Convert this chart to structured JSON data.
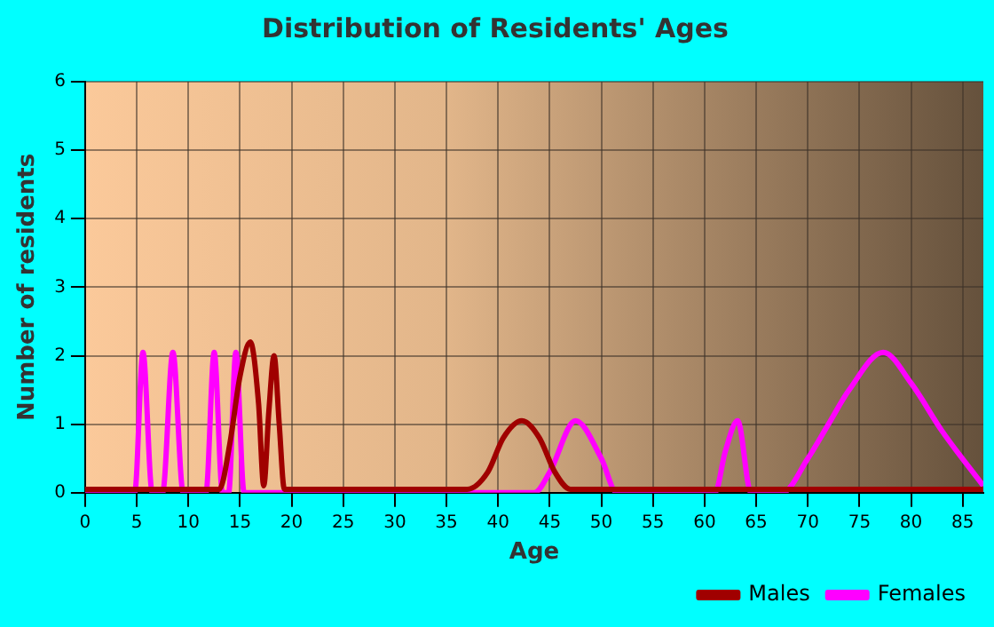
{
  "chart_data": {
    "type": "line",
    "title": "Distribution of Residents' Ages",
    "xlabel": "Age",
    "ylabel": "Number of residents",
    "xlim": [
      0,
      87
    ],
    "xticks": [
      0,
      5,
      10,
      15,
      20,
      25,
      30,
      35,
      40,
      45,
      50,
      55,
      60,
      65,
      70,
      75,
      80,
      85
    ],
    "ylim": [
      0,
      6
    ],
    "yticks": [
      0,
      1,
      2,
      3,
      4,
      5,
      6
    ],
    "grid": true,
    "legend": "bottom right",
    "marker": "none",
    "line_style": "solid",
    "series": [
      {
        "name": "Males",
        "color": "#a00000",
        "x": [
          0,
          13,
          14,
          15,
          16,
          16.8,
          17.3,
          17.8,
          18.3,
          18.8,
          19.3,
          20,
          37,
          39,
          40.5,
          42.3,
          44,
          45.5,
          47,
          60,
          87
        ],
        "values": [
          0.05,
          0.05,
          0.7,
          1.7,
          2.2,
          1.3,
          0.1,
          1.2,
          2,
          1,
          0.05,
          0.05,
          0.05,
          0.3,
          0.8,
          1.05,
          0.8,
          0.3,
          0.05,
          0.05,
          0.05
        ]
      },
      {
        "name": "Females",
        "color": "#ff00ff",
        "x": [
          0,
          4.8,
          5.6,
          6.5,
          7.5,
          8.5,
          9.5,
          11.7,
          12.5,
          13.3,
          13.9,
          14.6,
          15.4,
          43.5,
          45,
          47.5,
          50,
          51.5,
          61,
          62,
          63.2,
          64.5,
          67.5,
          70,
          72,
          74,
          77.3,
          80,
          83,
          87
        ],
        "values": [
          0,
          0,
          2.05,
          0,
          0,
          2.05,
          0,
          0,
          2.05,
          0,
          0,
          2.05,
          0,
          0,
          0.3,
          1.05,
          0.5,
          0,
          0,
          0.6,
          1.05,
          0,
          0,
          0.5,
          1,
          1.5,
          2.05,
          1.6,
          0.9,
          0.1
        ]
      }
    ]
  }
}
